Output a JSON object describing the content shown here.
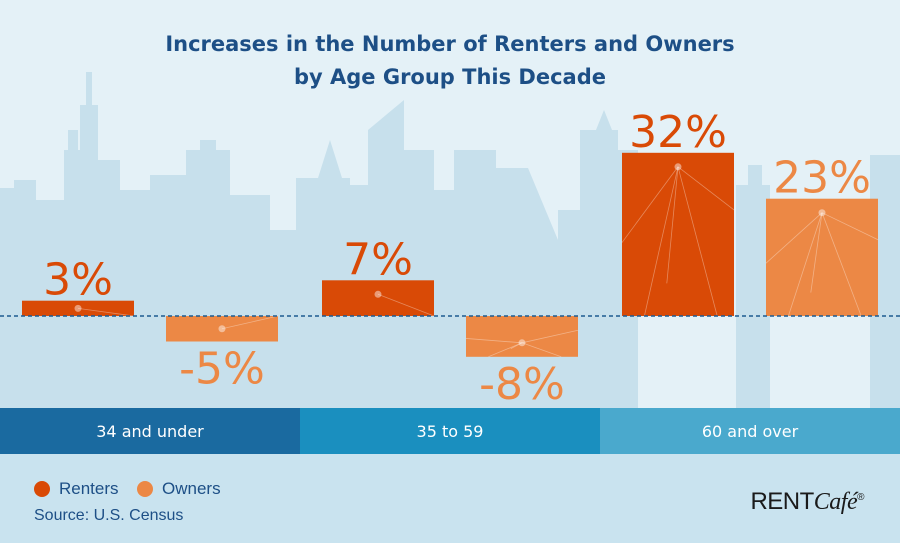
{
  "title": {
    "line1": "Increases in the Number of Renters and Owners",
    "line2": "by Age Group This Decade"
  },
  "colors": {
    "renters": "#d94a06",
    "owners": "#ec8845",
    "band_dark": "#1a6aa0",
    "band_mid": "#1a8fbf",
    "band_light": "#4aa9cd"
  },
  "chart_data": {
    "type": "bar",
    "title": "Increases in the Number of Renters and Owners by Age Group This Decade",
    "xlabel": "",
    "ylabel": "",
    "ylim": [
      -10,
      35
    ],
    "grid": false,
    "legend_position": "bottom-left",
    "categories": [
      "34 and under",
      "35 to 59",
      "60 and over"
    ],
    "series": [
      {
        "name": "Renters",
        "values": [
          3,
          7,
          32
        ],
        "labels": [
          "3%",
          "7%",
          "32%"
        ]
      },
      {
        "name": "Owners",
        "values": [
          -5,
          -8,
          23
        ],
        "labels": [
          "-5%",
          "-8%",
          "23%"
        ]
      }
    ]
  },
  "legend": {
    "renters_label": "Renters",
    "owners_label": "Owners"
  },
  "source": "Source: U.S. Census",
  "brand": {
    "rent": "RENT",
    "cafe": "Café",
    "mark": "®"
  }
}
